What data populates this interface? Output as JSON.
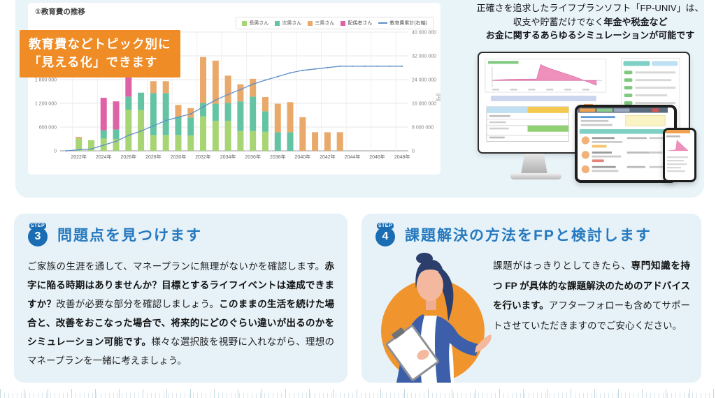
{
  "colors": {
    "section_bg": "#e9f4f8",
    "card_bg": "#e6f2f8",
    "callout_bg": "#ef8c26",
    "step_title_blue": "#2679bf",
    "badge_blue": "#1a6cb3",
    "person_circle_orange": "#f0942d"
  },
  "chart_panel": {
    "title": "①教育費の推移",
    "callout_lines": [
      "教育費などトピック別に",
      "「見える化」できます"
    ]
  },
  "chart_data": {
    "type": "bar",
    "subtype": "stacked-bars-with-cumulative-line",
    "title": "①教育費の推移",
    "years": [
      2021,
      2022,
      2023,
      2024,
      2025,
      2026,
      2027,
      2028,
      2029,
      2030,
      2031,
      2032,
      2033,
      2034,
      2035,
      2036,
      2037,
      2038,
      2039,
      2040,
      2041,
      2042,
      2043,
      2044,
      2045,
      2046,
      2047,
      2048
    ],
    "x_tick_labels": [
      "2022年",
      "2024年",
      "2026年",
      "2028年",
      "2030年",
      "2032年",
      "2034年",
      "2036年",
      "2038年",
      "2040年",
      "2042年",
      "2044年",
      "2046年",
      "2048年"
    ],
    "series": [
      {
        "name": "長男さん",
        "color": "#a8d573",
        "values": [
          0,
          310000,
          270000,
          310000,
          300000,
          1040000,
          1030000,
          400000,
          400000,
          400000,
          390000,
          870000,
          760000,
          760000,
          500000,
          500000,
          480000,
          0,
          0,
          0,
          0,
          0,
          0,
          0,
          0,
          0,
          0,
          0
        ]
      },
      {
        "name": "次男さん",
        "color": "#63c3a3",
        "values": [
          0,
          0,
          0,
          210000,
          240000,
          330000,
          440000,
          1060000,
          1060000,
          460000,
          450000,
          340000,
          430000,
          450000,
          750000,
          870000,
          520000,
          470000,
          470000,
          0,
          0,
          0,
          0,
          0,
          0,
          0,
          0,
          0
        ]
      },
      {
        "name": "三男さん",
        "color": "#e9a96a",
        "values": [
          0,
          40000,
          0,
          0,
          0,
          0,
          0,
          300000,
          300000,
          300000,
          240000,
          1160000,
          1090000,
          690000,
          430000,
          450000,
          360000,
          720000,
          760000,
          850000,
          470000,
          470000,
          470000,
          0,
          0,
          0,
          0,
          0
        ]
      },
      {
        "name": "配偶者さん",
        "color": "#de62a6",
        "values": [
          0,
          0,
          0,
          820000,
          710000,
          620000,
          0,
          0,
          0,
          0,
          0,
          0,
          0,
          0,
          0,
          0,
          0,
          0,
          0,
          0,
          0,
          0,
          0,
          0,
          0,
          0,
          0,
          0
        ]
      }
    ],
    "line_series": {
      "name": "教育費累計(右軸)",
      "color": "#6090c8",
      "values": [
        0,
        350000,
        620000,
        1960000,
        3210000,
        5200000,
        6670000,
        8430000,
        10190000,
        11350000,
        12430000,
        14800000,
        17080000,
        18980000,
        20660000,
        22480000,
        23840000,
        25030000,
        26260000,
        27110000,
        27580000,
        28050000,
        28520000,
        28520000,
        28520000,
        28520000,
        28520000,
        28520000
      ]
    },
    "left_axis": {
      "unit": "[円]",
      "step": 600000,
      "max": 3000000,
      "tick_labels": [
        "0",
        "600 000",
        "1 200 000",
        "1 800 000"
      ]
    },
    "right_axis": {
      "unit": "[円]",
      "step": 8000000,
      "max": 40000000,
      "tick_labels": [
        "0",
        "8 000 000",
        "16 000 000",
        "24 000 000",
        "32 000 000",
        "40 000 000"
      ]
    },
    "grid": true,
    "legend_position": "top-right"
  },
  "intro": {
    "lines": [
      [
        {
          "t": "正確さを追求したライフプランソフト「FP-UNIV」は、",
          "b": false
        }
      ],
      [
        {
          "t": "収支や貯蓄だけでなく",
          "b": false
        },
        {
          "t": "年金や税金など",
          "b": true
        }
      ],
      [
        {
          "t": "お金に関するあらゆるシミュレーションが可能です",
          "b": true
        }
      ]
    ]
  },
  "steps": [
    {
      "badge_label": "STEP",
      "number": "3",
      "title": "問題点を見つけます",
      "body": [
        {
          "t": "ご家族の生涯を通して、マネープランに無理がないかを確認します。",
          "b": false
        },
        {
          "t": "赤字に陥る時期はありませんか？目標とするライフイベントは達成できますか？",
          "b": true
        },
        {
          "t": "改善が必要な部分を確認しましょう。",
          "b": false
        },
        {
          "t": "このままの生活を続けた場合と、改善をおこなった場合で、将来的にどのぐらい違いが出るのかをシミュレーション可能です。",
          "b": true
        },
        {
          "t": "様々な選択肢を視野に入れながら、理想のマネープランを一緒に考えましょう。",
          "b": false
        }
      ]
    },
    {
      "badge_label": "STEP",
      "number": "4",
      "title": "課題解決の方法をFPと検討します",
      "body": [
        {
          "t": "課題がはっきりとしてきたら、",
          "b": false
        },
        {
          "t": "専門知識を持つ FP が具体的な課題解決のためのアドバイスを行います。",
          "b": true
        },
        {
          "t": "アフターフォローも含めてサポートさせていただきますのでご安心ください。",
          "b": false
        }
      ]
    }
  ]
}
